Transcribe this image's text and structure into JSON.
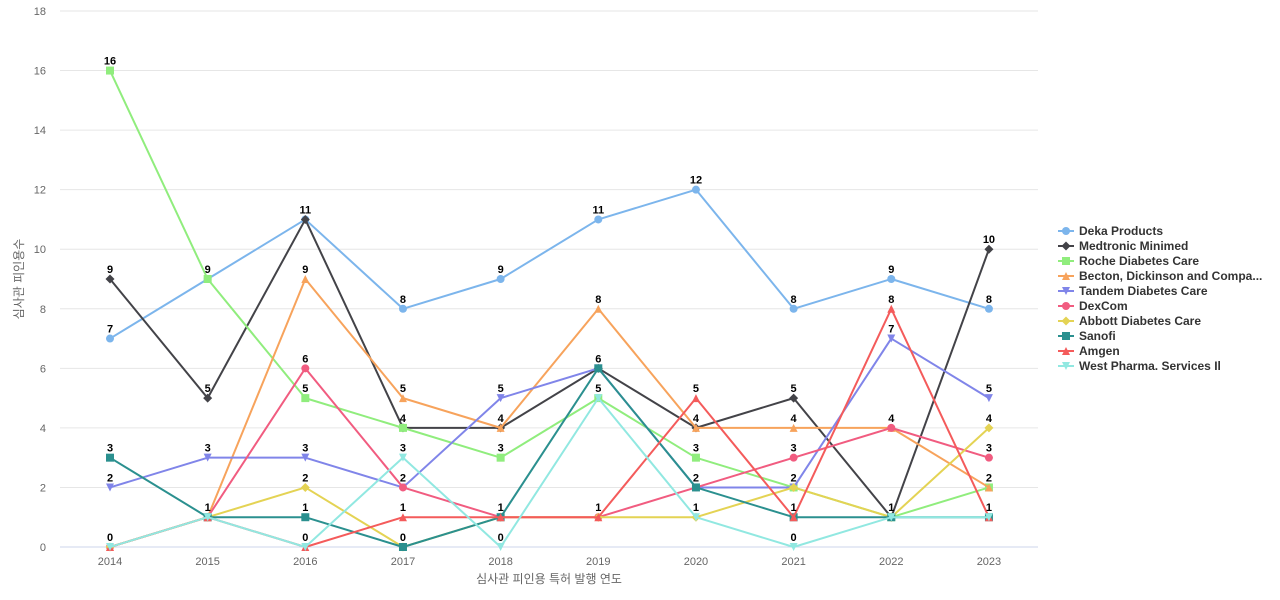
{
  "chart_data": {
    "type": "line",
    "title": "",
    "xlabel": "심사관 피인용 특허 발행 연도",
    "ylabel": "심사관 피인용수",
    "x": [
      "2014",
      "2015",
      "2016",
      "2017",
      "2018",
      "2019",
      "2020",
      "2021",
      "2022",
      "2023"
    ],
    "ylim": [
      0,
      18
    ],
    "yticks": [
      0,
      2,
      4,
      6,
      8,
      10,
      12,
      14,
      16,
      18
    ],
    "grid": true,
    "legend_position": "right",
    "series": [
      {
        "name": "Deka Products",
        "color": "#7cb5ec",
        "marker": "circle",
        "values": [
          7,
          9,
          11,
          8,
          9,
          11,
          12,
          8,
          9,
          8
        ]
      },
      {
        "name": "Medtronic Minimed",
        "color": "#434348",
        "marker": "diamond",
        "values": [
          9,
          5,
          11,
          4,
          4,
          6,
          4,
          5,
          1,
          10
        ]
      },
      {
        "name": "Roche Diabetes Care",
        "color": "#90ed7d",
        "marker": "square",
        "values": [
          16,
          9,
          5,
          4,
          3,
          5,
          3,
          2,
          1,
          2
        ]
      },
      {
        "name": "Becton, Dickinson and Compa...",
        "color": "#f7a35c",
        "marker": "triangle",
        "values": [
          0,
          1,
          9,
          5,
          4,
          8,
          4,
          4,
          4,
          2
        ]
      },
      {
        "name": "Tandem Diabetes Care",
        "color": "#8085e9",
        "marker": "triangle-down",
        "values": [
          2,
          3,
          3,
          2,
          5,
          6,
          2,
          2,
          7,
          5
        ]
      },
      {
        "name": "DexCom",
        "color": "#f15c80",
        "marker": "circle",
        "values": [
          0,
          1,
          6,
          2,
          1,
          1,
          2,
          3,
          4,
          3
        ]
      },
      {
        "name": "Abbott Diabetes Care",
        "color": "#e4d354",
        "marker": "diamond",
        "values": [
          0,
          1,
          2,
          0,
          1,
          1,
          1,
          2,
          1,
          4
        ]
      },
      {
        "name": "Sanofi",
        "color": "#2b908f",
        "marker": "square",
        "values": [
          3,
          1,
          1,
          0,
          1,
          6,
          2,
          1,
          1,
          1
        ]
      },
      {
        "name": "Amgen",
        "color": "#f45b5b",
        "marker": "triangle",
        "values": [
          0,
          1,
          0,
          1,
          1,
          1,
          5,
          1,
          8,
          1
        ]
      },
      {
        "name": "West Pharma. Services Il",
        "color": "#91e8e1",
        "marker": "triangle-down",
        "values": [
          0,
          1,
          0,
          3,
          0,
          5,
          1,
          0,
          1,
          1
        ]
      }
    ],
    "data_labels": [
      {
        "x": "2014",
        "values": [
          16,
          9,
          7,
          3,
          2,
          0
        ]
      },
      {
        "x": "2015",
        "values": [
          9,
          5,
          3,
          1
        ]
      },
      {
        "x": "2016",
        "values": [
          11,
          9,
          6,
          5,
          3,
          2,
          1,
          0
        ]
      },
      {
        "x": "2017",
        "values": [
          8,
          5,
          4,
          3,
          2,
          1,
          0
        ]
      },
      {
        "x": "2018",
        "values": [
          9,
          5,
          4,
          3,
          1,
          0
        ]
      },
      {
        "x": "2019",
        "values": [
          11,
          8,
          6,
          5,
          1
        ]
      },
      {
        "x": "2020",
        "values": [
          12,
          5,
          4,
          3,
          2,
          1
        ]
      },
      {
        "x": "2021",
        "values": [
          8,
          5,
          4,
          3,
          2,
          1,
          0
        ]
      },
      {
        "x": "2022",
        "values": [
          9,
          8,
          7,
          4,
          1
        ]
      },
      {
        "x": "2023",
        "values": [
          10,
          8,
          5,
          4,
          3,
          2,
          1
        ]
      }
    ]
  }
}
